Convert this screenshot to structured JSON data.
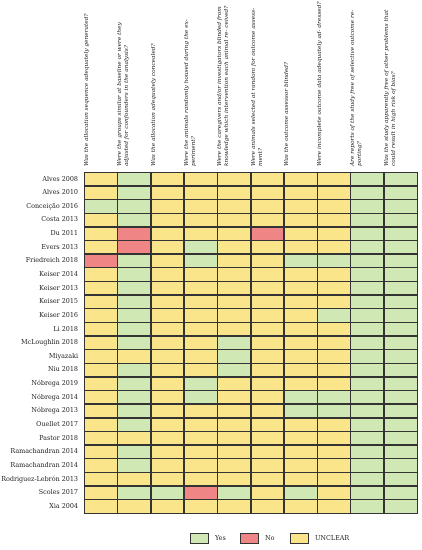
{
  "colors": {
    "Y": "#cfe8b4",
    "N": "#f08585",
    "U": "#fbe58a"
  },
  "columns": [
    "Was the allocation sequence adequately generated?",
    "Were the groups similar at baseline or were they adjusted for confounders in the analysis?",
    "Was the allocation adequately concealed?",
    "Were the animals randomly housed during the ex- periment?",
    "Were the caregivers and/or investigators blinded from knowledge which intervention each animal re- ceived?",
    "Were animals selected at random for outcome assess- ment?",
    "Was the outcome assessor blinded?",
    "Were incomplete outcome data adequately ad- dressed?",
    "Are reports of the study free of selective outcome re- porting?",
    "Was the study apparently free of other problems that could result in high risk of bias?"
  ],
  "rows": [
    {
      "study": "Alves 2008",
      "cells": "UYUUUUUUYY"
    },
    {
      "study": "Alves 2010",
      "cells": "UYUUUUUUYY"
    },
    {
      "study": "Conceição 2016",
      "cells": "YYUUUUUUYY"
    },
    {
      "study": "Costa 2013",
      "cells": "UYUUUUUUYY"
    },
    {
      "study": "Du 2011",
      "cells": "UNUUUNUUYY"
    },
    {
      "study": "Evers 2013",
      "cells": "UNUYUUUUYY"
    },
    {
      "study": "Friedreich 2018",
      "cells": "NYUYUUYYYY"
    },
    {
      "study": "Keiser 2014",
      "cells": "UYUUUUUUYY"
    },
    {
      "study": "Keiser 2013",
      "cells": "UYUUUUUUYY"
    },
    {
      "study": "Keiser 2015",
      "cells": "UYUUUUUUYY"
    },
    {
      "study": "Keiser 2016",
      "cells": "UYUUUUUYYY"
    },
    {
      "study": "Li 2018",
      "cells": "UYUUUUUUYY"
    },
    {
      "study": "McLoughlin 2018",
      "cells": "UYUUYUUUYY"
    },
    {
      "study": "Miyazaki",
      "cells": "UUUUYUUUYY"
    },
    {
      "study": "Niu 2018",
      "cells": "UYUUYUUUYY"
    },
    {
      "study": "Nóbrega 2019",
      "cells": "UYUYUUUUYY"
    },
    {
      "study": "Nóbrega 2014",
      "cells": "UYUYUUYYYY"
    },
    {
      "study": "Nóbrega 2013",
      "cells": "UYUUUUYYYY"
    },
    {
      "study": "Ouellet 2017",
      "cells": "UYUUUUUUYY"
    },
    {
      "study": "Pastor 2018",
      "cells": "UUUUUUUUYY"
    },
    {
      "study": "Ramachandran 2014",
      "cells": "UYUUUUUUYY"
    },
    {
      "study": "Ramachandran 2014",
      "cells": "UYUUUUUUYY"
    },
    {
      "study": "Rodriguez-Lebrón 2013",
      "cells": "UUUUUUUUYY"
    },
    {
      "study": "Scoles 2017",
      "cells": "UYYNYUYUYY"
    },
    {
      "study": "Xia 2004",
      "cells": "UUUUUUUUYY"
    }
  ],
  "legend": [
    {
      "key": "Y",
      "label": "Yes"
    },
    {
      "key": "N",
      "label": "No"
    },
    {
      "key": "U",
      "label": "UNCLEAR"
    }
  ]
}
